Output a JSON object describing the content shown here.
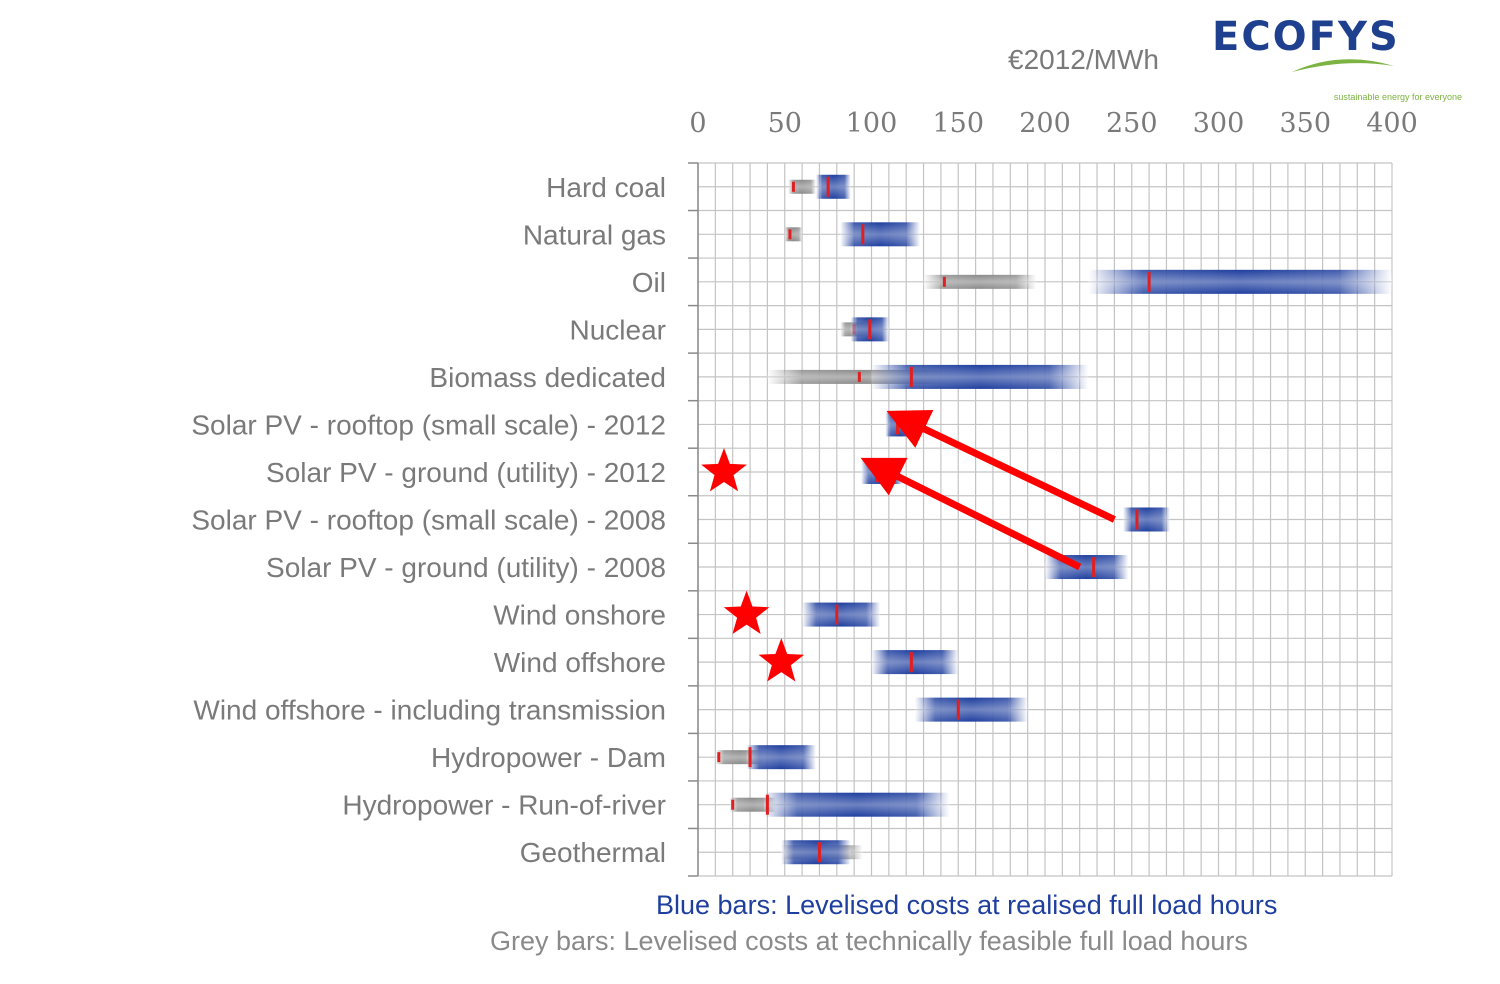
{
  "logo": {
    "name": "ECOFYS",
    "tagline": "sustainable energy for everyone",
    "colors": {
      "text": "#1f3f8f",
      "swoosh": "#7cb342"
    }
  },
  "chart_data": {
    "type": "range-bar",
    "unit_label": "€2012/MWh",
    "x_axis": {
      "ticks": [
        0,
        50,
        100,
        150,
        200,
        250,
        300,
        350,
        400
      ],
      "range": [
        0,
        400
      ],
      "position": "top",
      "minor_step": 10
    },
    "grid": true,
    "categories": [
      "Hard coal",
      "Natural gas",
      "Oil",
      "Nuclear",
      "Biomass dedicated",
      "Solar PV - rooftop (small scale) - 2012",
      "Solar PV - ground (utility) - 2012",
      "Solar PV - rooftop (small scale) - 2008",
      "Solar PV - ground (utility) - 2008",
      "Wind onshore",
      "Wind offshore",
      "Wind offshore - including transmission",
      "Hydropower - Dam",
      "Hydropower - Run-of-river",
      "Geothermal"
    ],
    "series": [
      {
        "name": "Blue bars: Levelised costs at realised full load hours",
        "color": "#1f3f9f",
        "values": [
          {
            "min": 68,
            "max": 88,
            "mid": 75
          },
          {
            "min": 82,
            "max": 128,
            "mid": 95
          },
          {
            "min": 225,
            "max": 400,
            "mid": 260
          },
          {
            "min": 88,
            "max": 110,
            "mid": 99
          },
          {
            "min": 100,
            "max": 225,
            "mid": 123
          },
          {
            "min": 108,
            "max": 125,
            "mid": 115
          },
          {
            "min": 94,
            "max": 118,
            "mid": 103
          },
          {
            "min": 245,
            "max": 272,
            "mid": 253
          },
          {
            "min": 200,
            "max": 248,
            "mid": 228
          },
          {
            "min": 60,
            "max": 105,
            "mid": 80
          },
          {
            "min": 100,
            "max": 150,
            "mid": 123
          },
          {
            "min": 125,
            "max": 190,
            "mid": 150
          },
          {
            "min": 28,
            "max": 68,
            "mid": 30
          },
          {
            "min": 38,
            "max": 145,
            "mid": 40
          },
          {
            "min": 48,
            "max": 88,
            "mid": 70
          }
        ]
      },
      {
        "name": "Grey bars: Levelised costs at technically feasible full load hours",
        "color": "#8a8a8a",
        "values": [
          {
            "min": 52,
            "max": 68,
            "mid": 55
          },
          {
            "min": 50,
            "max": 60,
            "mid": 53
          },
          {
            "min": 130,
            "max": 195,
            "mid": 142
          },
          {
            "min": 82,
            "max": 98,
            "mid": 90
          },
          {
            "min": 40,
            "max": 150,
            "mid": 93
          },
          null,
          null,
          null,
          null,
          null,
          null,
          null,
          {
            "min": 10,
            "max": 38,
            "mid": 12
          },
          {
            "min": 18,
            "max": 45,
            "mid": 20
          },
          {
            "min": 48,
            "max": 95,
            "mid": 68
          }
        ]
      }
    ],
    "annotations": {
      "arrows": [
        {
          "from": {
            "category": "Solar PV - rooftop (small scale) - 2008",
            "x": 240
          },
          "to": {
            "category": "Solar PV - rooftop (small scale) - 2012",
            "x": 125
          },
          "color": "#ff0000"
        },
        {
          "from": {
            "category": "Solar PV - ground (utility) - 2008",
            "x": 220
          },
          "to": {
            "category": "Solar PV - ground (utility) - 2012",
            "x": 110
          },
          "color": "#ff0000"
        }
      ],
      "stars": [
        {
          "category": "Solar PV - ground (utility) - 2012",
          "x": 15,
          "color": "#ff0000"
        },
        {
          "category": "Wind onshore",
          "x": 28,
          "color": "#ff0000"
        },
        {
          "category": "Wind offshore",
          "x": 48,
          "color": "#ff0000"
        }
      ]
    }
  }
}
